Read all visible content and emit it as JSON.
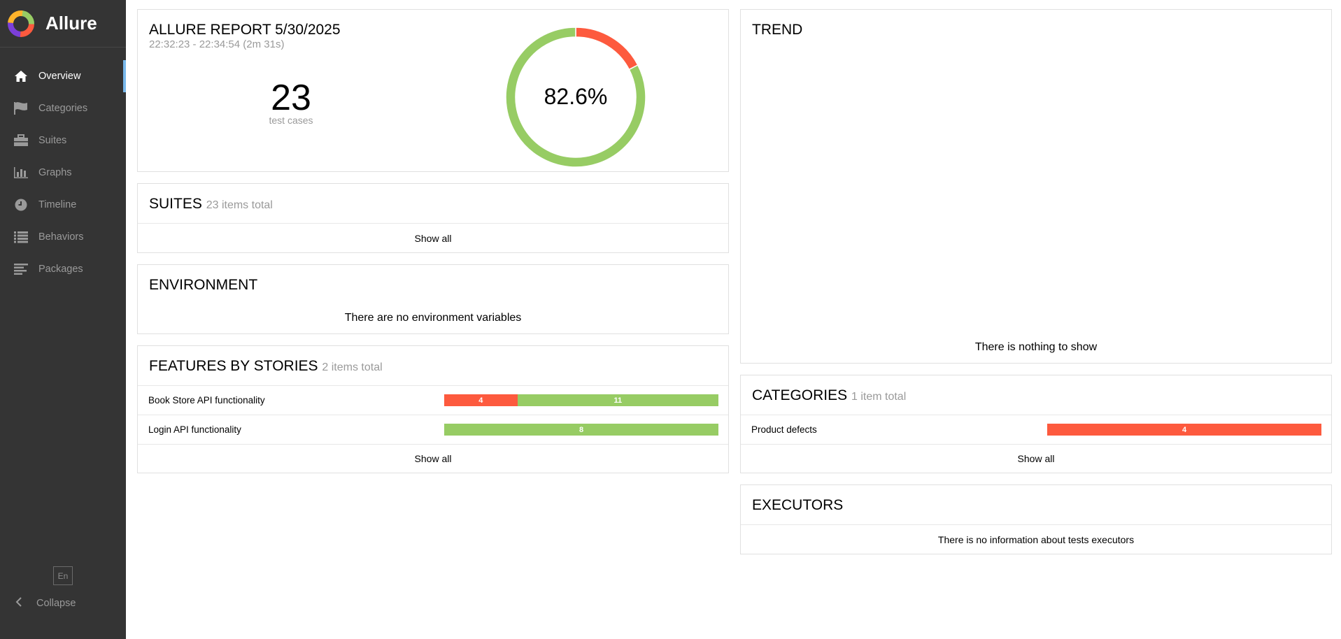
{
  "brand": {
    "name": "Allure"
  },
  "sidebar": {
    "items": [
      {
        "label": "Overview",
        "icon": "home-icon",
        "active": true
      },
      {
        "label": "Categories",
        "icon": "flag-icon",
        "active": false
      },
      {
        "label": "Suites",
        "icon": "briefcase-icon",
        "active": false
      },
      {
        "label": "Graphs",
        "icon": "bar-chart-icon",
        "active": false
      },
      {
        "label": "Timeline",
        "icon": "clock-icon",
        "active": false
      },
      {
        "label": "Behaviors",
        "icon": "list-icon",
        "active": false
      },
      {
        "label": "Packages",
        "icon": "align-left-icon",
        "active": false
      }
    ],
    "language": "En",
    "collapse_label": "Collapse"
  },
  "summary": {
    "title": "ALLURE REPORT 5/30/2025",
    "time_range": "22:32:23 - 22:34:54 (2m 31s)",
    "test_count": "23",
    "test_count_label": "test cases",
    "pass_rate_text": "82.6%",
    "donut": {
      "failed": 4,
      "passed": 19
    }
  },
  "suites": {
    "title": "SUITES",
    "subtitle": "23 items total",
    "show_all": "Show all"
  },
  "environment": {
    "title": "ENVIRONMENT",
    "empty_message": "There are no environment variables"
  },
  "features": {
    "title": "FEATURES BY STORIES",
    "subtitle": "2 items total",
    "rows": [
      {
        "name": "Book Store API functionality",
        "failed": 4,
        "passed": 11
      },
      {
        "name": "Login API functionality",
        "failed": 0,
        "passed": 8
      }
    ],
    "show_all": "Show all"
  },
  "trend": {
    "title": "TREND",
    "empty_message": "There is nothing to show"
  },
  "categories": {
    "title": "CATEGORIES",
    "subtitle": "1 item total",
    "rows": [
      {
        "name": "Product defects",
        "failed": 4,
        "passed": 0
      }
    ],
    "show_all": "Show all"
  },
  "executors": {
    "title": "EXECUTORS",
    "empty_message": "There is no information about tests executors"
  },
  "colors": {
    "sidebar_bg": "#343434",
    "failed": "#fd5a3e",
    "passed": "#97cc64",
    "active_marker": "#7ab9eb"
  }
}
